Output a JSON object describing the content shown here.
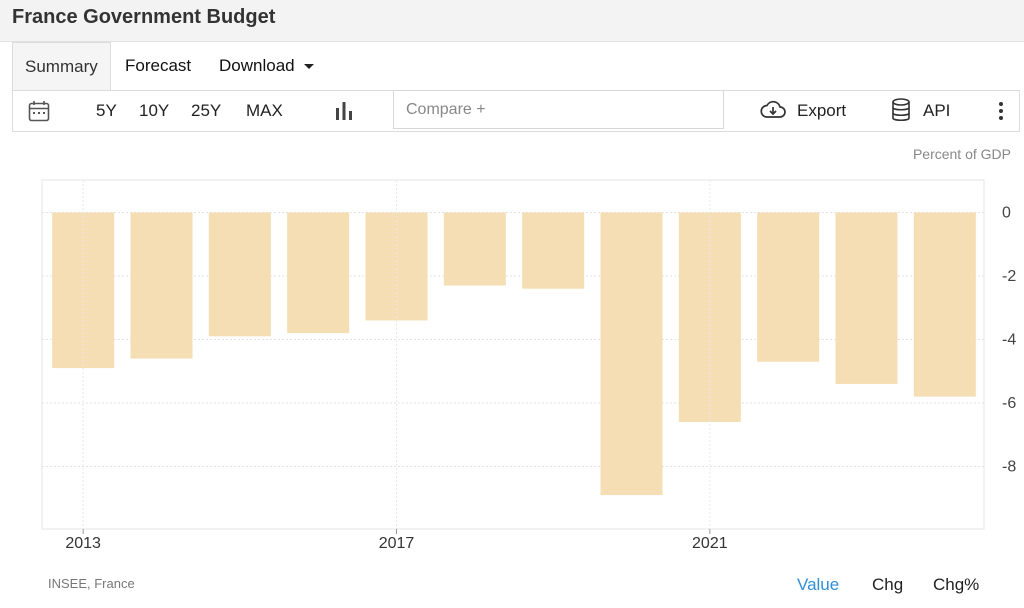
{
  "page": {
    "title": "France Government Budget"
  },
  "tabs": [
    {
      "label": "Summary",
      "active": true
    },
    {
      "label": "Forecast",
      "active": false
    },
    {
      "label": "Download",
      "active": false
    }
  ],
  "toolbar": {
    "ranges": [
      "5Y",
      "10Y",
      "25Y",
      "MAX"
    ],
    "compare_placeholder": "Compare +",
    "export_label": "Export",
    "api_label": "API",
    "icons": [
      "calendar-icon",
      "bar-chart-icon",
      "cloud-download-icon",
      "database-icon",
      "more-vertical-icon"
    ]
  },
  "chart_data": {
    "type": "bar",
    "ylabel": "Percent of GDP",
    "categories": [
      "2013",
      "2014",
      "2015",
      "2016",
      "2017",
      "2018",
      "2019",
      "2020",
      "2021",
      "2022",
      "2023",
      "2024"
    ],
    "values": [
      -4.9,
      -4.6,
      -3.9,
      -3.8,
      -3.4,
      -2.3,
      -2.4,
      -8.9,
      -6.6,
      -4.7,
      -5.4,
      -5.8
    ],
    "x_tick_labels": [
      "2013",
      "2017",
      "2021"
    ],
    "yticks": [
      0,
      -2,
      -4,
      -6,
      -8
    ],
    "ylim": [
      -10,
      1
    ],
    "axis_side": "right",
    "bar_color": "#f5deb3",
    "grid": true
  },
  "footer": {
    "source": "INSEE, France",
    "views": [
      {
        "label": "Value",
        "active": true
      },
      {
        "label": "Chg",
        "active": false
      },
      {
        "label": "Chg%",
        "active": false
      }
    ]
  }
}
